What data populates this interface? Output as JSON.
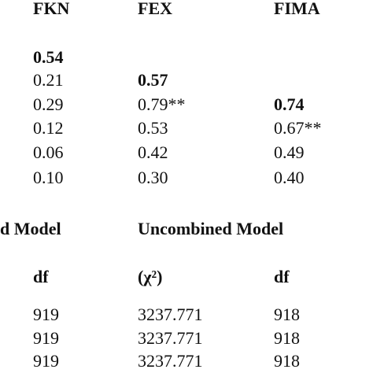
{
  "correlations": {
    "header": [
      "FKN",
      "FEX",
      "FIMA"
    ],
    "rows": [
      [
        "0.54",
        null,
        null
      ],
      [
        "0.21",
        "0.57",
        null
      ],
      [
        "0.29",
        "0.79**",
        "0.74"
      ],
      [
        "0.12",
        "0.53",
        "0.67**"
      ],
      [
        "0.06",
        "0.42",
        "0.49"
      ],
      [
        "0.10",
        "0.30",
        "0.40"
      ]
    ]
  },
  "fit": {
    "model_headers": [
      "d Model",
      "Uncombined Model"
    ],
    "subheader": [
      "df",
      "(χ²)",
      "df"
    ],
    "rows": [
      [
        "919",
        "3237.771",
        "918"
      ],
      [
        "919",
        "3237.771",
        "918"
      ],
      [
        "919",
        "3237.771",
        "918"
      ]
    ]
  }
}
